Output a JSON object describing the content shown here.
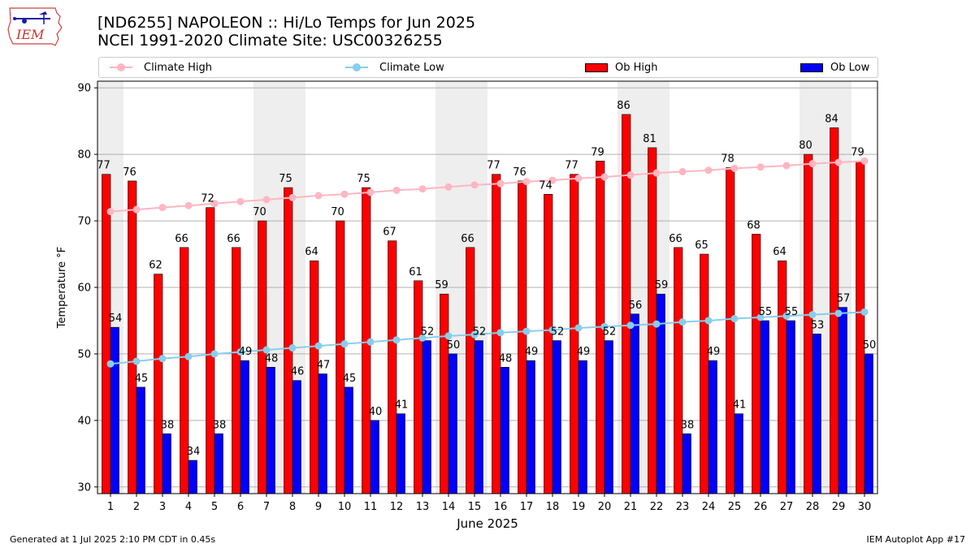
{
  "header": {
    "title_line1": "[ND6255] NAPOLEON :: Hi/Lo Temps for Jun 2025",
    "title_line2": "NCEI 1991-2020 Climate Site: USC00326255"
  },
  "logo": {
    "text": "IEM",
    "icon": "iem-iowa-logo"
  },
  "legend": {
    "climate_high": "Climate High",
    "climate_low": "Climate Low",
    "ob_high": "Ob High",
    "ob_low": "Ob Low"
  },
  "footer": {
    "generated": "Generated at 1 Jul 2025 2:10 PM CDT in 0.45s",
    "app": "IEM Autoplot App #17"
  },
  "colors": {
    "ob_high": "#ff0000",
    "ob_low": "#0000ff",
    "climate_high": "#ffb6c1",
    "climate_low": "#87ceeb",
    "weekend_band": "#eeeeee"
  },
  "chart_data": {
    "type": "bar",
    "xlabel": "June 2025",
    "ylabel": "Temperature °F",
    "ylim": [
      29,
      91
    ],
    "yticks": [
      30,
      40,
      50,
      60,
      70,
      80,
      90
    ],
    "grid": true,
    "legend_position": "top",
    "categories": [
      "1",
      "2",
      "3",
      "4",
      "5",
      "6",
      "7",
      "8",
      "9",
      "10",
      "11",
      "12",
      "13",
      "14",
      "15",
      "16",
      "17",
      "18",
      "19",
      "20",
      "21",
      "22",
      "23",
      "24",
      "25",
      "26",
      "27",
      "28",
      "29",
      "30"
    ],
    "shaded_days": [
      1,
      7,
      8,
      14,
      15,
      21,
      22,
      28,
      29
    ],
    "series": [
      {
        "name": "Ob High",
        "type": "bar",
        "values": [
          77,
          76,
          62,
          66,
          72,
          66,
          70,
          75,
          64,
          70,
          75,
          67,
          61,
          59,
          66,
          77,
          76,
          74,
          77,
          79,
          86,
          81,
          66,
          65,
          78,
          68,
          64,
          80,
          84,
          79
        ]
      },
      {
        "name": "Ob Low",
        "type": "bar",
        "values": [
          54,
          45,
          38,
          34,
          38,
          49,
          48,
          46,
          47,
          45,
          40,
          41,
          52,
          50,
          52,
          48,
          49,
          52,
          49,
          52,
          56,
          59,
          38,
          49,
          41,
          55,
          55,
          53,
          57,
          50
        ]
      },
      {
        "name": "Climate High",
        "type": "line",
        "values": [
          71.4,
          71.7,
          72.0,
          72.3,
          72.6,
          72.9,
          73.2,
          73.5,
          73.8,
          74.0,
          74.3,
          74.6,
          74.8,
          75.1,
          75.4,
          75.6,
          75.9,
          76.1,
          76.4,
          76.6,
          76.9,
          77.2,
          77.4,
          77.6,
          77.9,
          78.1,
          78.3,
          78.6,
          78.8,
          79.0
        ]
      },
      {
        "name": "Climate Low",
        "type": "line",
        "values": [
          48.5,
          48.9,
          49.3,
          49.6,
          50.0,
          50.3,
          50.6,
          50.9,
          51.2,
          51.5,
          51.8,
          52.1,
          52.4,
          52.7,
          52.9,
          53.2,
          53.4,
          53.6,
          53.9,
          54.1,
          54.3,
          54.5,
          54.8,
          55.0,
          55.3,
          55.5,
          55.7,
          55.9,
          56.1,
          56.3
        ]
      }
    ]
  }
}
